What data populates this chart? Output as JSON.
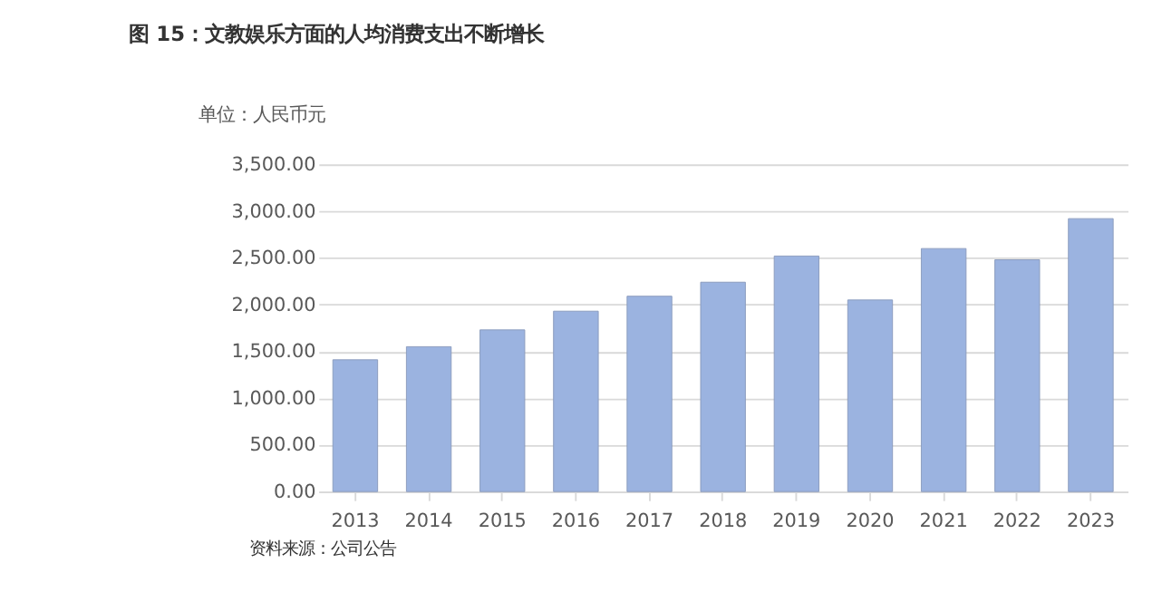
{
  "chart_data": {
    "type": "bar",
    "title": "图 15：文教娱乐方面的人均消费支出不断增长",
    "ylabel": "单位：人民币元",
    "categories": [
      "2013",
      "2014",
      "2015",
      "2016",
      "2017",
      "2018",
      "2019",
      "2020",
      "2021",
      "2022",
      "2023"
    ],
    "values": [
      1410,
      1550,
      1730,
      1930,
      2090,
      2240,
      2520,
      2050,
      2600,
      2480,
      2920
    ],
    "color": "#9bb3e0",
    "ylim": [
      0,
      3500
    ],
    "yticks": [
      {
        "value": 0,
        "label": "0.00"
      },
      {
        "value": 500,
        "label": "500.00"
      },
      {
        "value": 1000,
        "label": "1,000.00"
      },
      {
        "value": 1500,
        "label": "1,500.00"
      },
      {
        "value": 2000,
        "label": "2,000.00"
      },
      {
        "value": 2500,
        "label": "2,500.00"
      },
      {
        "value": 3000,
        "label": "3,000.00"
      },
      {
        "value": 3500,
        "label": "3,500.00"
      }
    ],
    "grid": "y",
    "annotations": [
      "资料来源：公司公告"
    ]
  }
}
